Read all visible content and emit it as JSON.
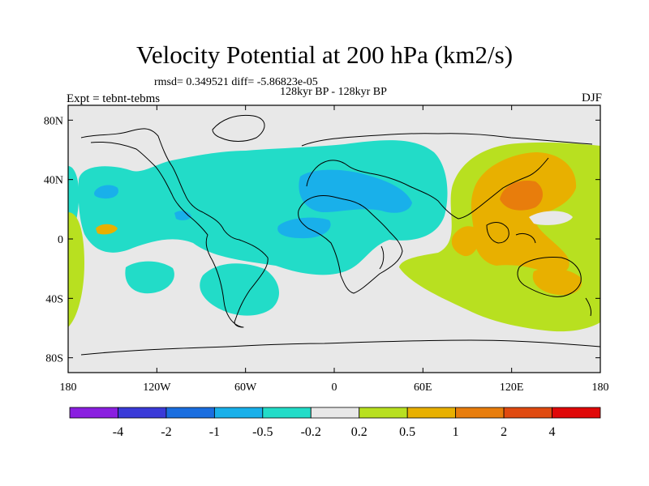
{
  "title": "Velocity Potential at 200 hPa (km2/s)",
  "stats": "rmsd= 0.349521 diff= -5.86823e-05",
  "period": "128kyr BP - 128kyr BP",
  "experiment": "Expt = tebnt-tebms",
  "season": "DJF",
  "axes": {
    "lat_ticks": [
      {
        "value": 80,
        "label": "80N"
      },
      {
        "value": 40,
        "label": "40N"
      },
      {
        "value": 0,
        "label": "0"
      },
      {
        "value": -40,
        "label": "40S"
      },
      {
        "value": -80,
        "label": "80S"
      }
    ],
    "lon_ticks": [
      {
        "value": -180,
        "label": "180"
      },
      {
        "value": -120,
        "label": "120W"
      },
      {
        "value": -60,
        "label": "60W"
      },
      {
        "value": 0,
        "label": "0"
      },
      {
        "value": 60,
        "label": "60E"
      },
      {
        "value": 120,
        "label": "120E"
      },
      {
        "value": 180,
        "label": "180"
      }
    ],
    "lon_range": [
      -180,
      180
    ],
    "lat_range": [
      -90,
      90
    ]
  },
  "colorbar": {
    "colors": [
      "#8a1fe0",
      "#3a3ad8",
      "#1a6ee0",
      "#19b0ea",
      "#22dcc8",
      "#e8e8e8",
      "#b8e020",
      "#e8b000",
      "#e87d0c",
      "#e04a10",
      "#e00808"
    ],
    "labels": [
      "-4",
      "-2",
      "-1",
      "-0.5",
      "-0.2",
      "0.2",
      "0.5",
      "1",
      "2",
      "4"
    ]
  },
  "colors": {
    "neutral": "#e8e8e8",
    "neg_weak": "#22dcc8",
    "neg_mid": "#19b0ea",
    "pos_weak": "#b8e020",
    "pos_mid": "#e8b000",
    "pos_strong": "#e87d0c",
    "coast": "#000000"
  }
}
